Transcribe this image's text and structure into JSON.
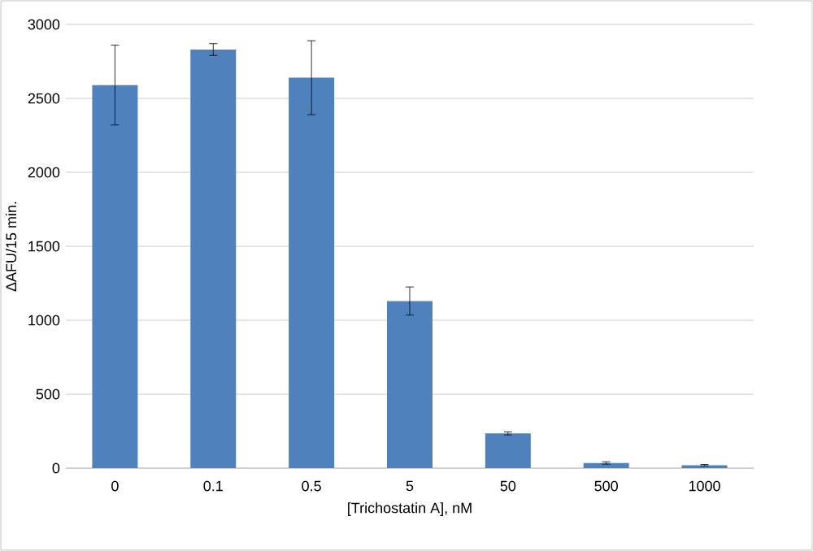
{
  "chart_data": {
    "type": "bar",
    "xlabel": "[Trichostatin A], nM",
    "ylabel": "ΔAFU/15 min.",
    "categories": [
      "0",
      "0.1",
      "0.5",
      "5",
      "50",
      "500",
      "1000"
    ],
    "values": [
      2590,
      2830,
      2640,
      1130,
      235,
      35,
      20
    ],
    "errors": [
      270,
      40,
      250,
      95,
      10,
      8,
      5
    ],
    "color": "#4f81bd",
    "ylim": [
      0,
      3000
    ],
    "yticks": [
      0,
      500,
      1000,
      1500,
      2000,
      2500,
      3000
    ],
    "grid": "y"
  }
}
